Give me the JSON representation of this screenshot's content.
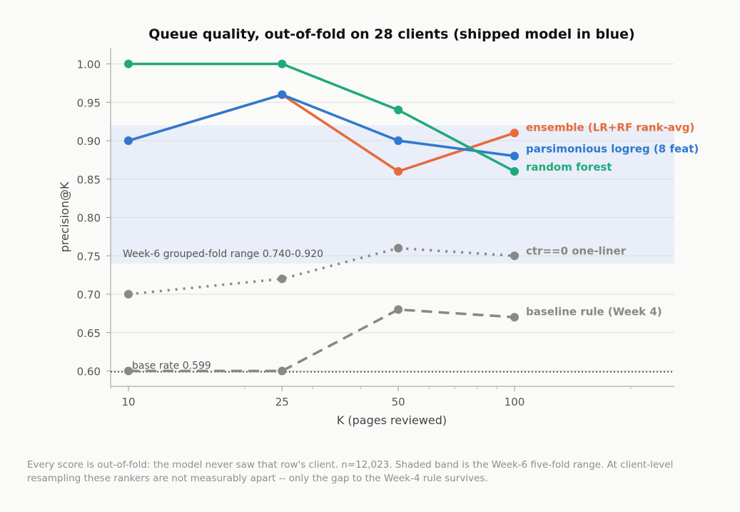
{
  "chart_data": {
    "type": "line",
    "title": "Queue quality, out-of-fold on 28 clients (shipped model in blue)",
    "xlabel": "K (pages reviewed)",
    "ylabel": "precision@K",
    "x_scale": "log",
    "x": [
      10,
      25,
      50,
      100
    ],
    "x_ticks": [
      "10",
      "25",
      "50",
      "100"
    ],
    "ylim": [
      0.58,
      1.02
    ],
    "y_ticks": [
      "0.60",
      "0.65",
      "0.70",
      "0.75",
      "0.80",
      "0.85",
      "0.90",
      "0.95",
      "1.00"
    ],
    "grid": "horizontal",
    "series": [
      {
        "name": "ensemble (LR+RF rank-avg)",
        "values": [
          0.9,
          0.96,
          0.86,
          0.91
        ],
        "color": "#e66a3a",
        "style": "solid"
      },
      {
        "name": "parsimonious logreg (8 feat)",
        "values": [
          0.9,
          0.96,
          0.9,
          0.88
        ],
        "color": "#2f78d0",
        "style": "solid"
      },
      {
        "name": "random forest",
        "values": [
          1.0,
          1.0,
          0.94,
          0.86
        ],
        "color": "#20a97a",
        "style": "solid"
      },
      {
        "name": "ctr==0 one-liner",
        "values": [
          0.7,
          0.72,
          0.76,
          0.75
        ],
        "color": "#888884",
        "style": "dotted"
      },
      {
        "name": "baseline rule (Week 4)",
        "values": [
          0.6,
          0.6,
          0.68,
          0.67
        ],
        "color": "#888884",
        "style": "dashed"
      }
    ],
    "band": {
      "label": "Week-6 grouped-fold range  0.740-0.920",
      "low": 0.74,
      "high": 0.92,
      "color": "#e9eef8"
    },
    "base_rate": {
      "label": "base rate 0.599",
      "value": 0.599
    }
  },
  "footnote": "Every score is out-of-fold: the model never saw that row's client. n=12,023. Shaded band is the Week-6 five-fold range. At client-level resampling these rankers are not measurably apart -- only the gap to the Week-4 rule survives."
}
